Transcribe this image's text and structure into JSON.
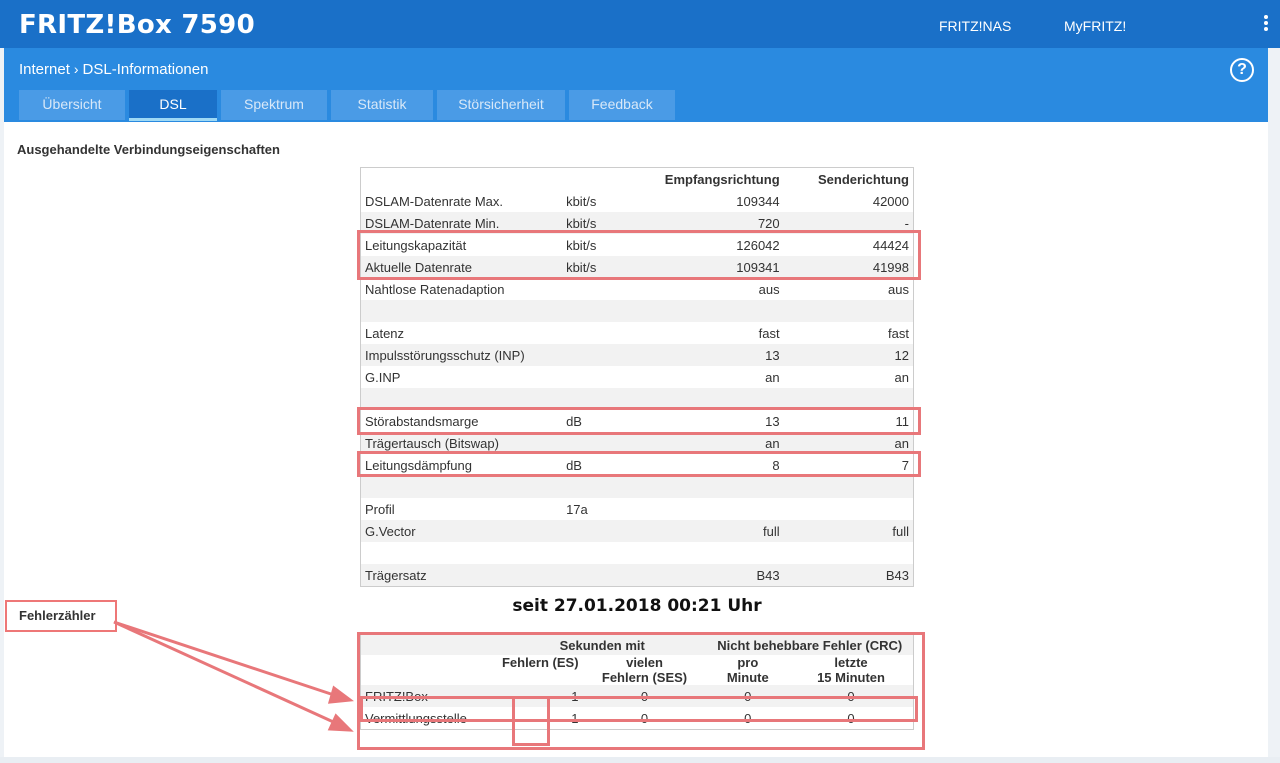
{
  "header": {
    "logo": "FRITZ!Box 7590",
    "links": [
      "FRITZ!NAS",
      "MyFRITZ!"
    ]
  },
  "breadcrumb": {
    "parent": "Internet",
    "current": "DSL-Informationen"
  },
  "tabs": [
    {
      "label": "Übersicht",
      "active": false
    },
    {
      "label": "DSL",
      "active": true
    },
    {
      "label": "Spektrum",
      "active": false
    },
    {
      "label": "Statistik",
      "active": false
    },
    {
      "label": "Störsicherheit",
      "active": false
    },
    {
      "label": "Feedback",
      "active": false
    }
  ],
  "section_title": "Ausgehandelte Verbindungseigenschaften",
  "dsl_table": {
    "headers": [
      "",
      "",
      "Empfangsrichtung",
      "Senderichtung"
    ],
    "rows": [
      [
        "DSLAM-Datenrate Max.",
        "kbit/s",
        "109344",
        "42000"
      ],
      [
        "DSLAM-Datenrate Min.",
        "kbit/s",
        "720",
        "-"
      ],
      [
        "Leitungskapazität",
        "kbit/s",
        "126042",
        "44424"
      ],
      [
        "Aktuelle Datenrate",
        "kbit/s",
        "109341",
        "41998"
      ],
      [
        "Nahtlose Ratenadaption",
        "",
        "aus",
        "aus"
      ],
      [
        "",
        "",
        "",
        ""
      ],
      [
        "Latenz",
        "",
        "fast",
        "fast"
      ],
      [
        "Impulsstörungsschutz (INP)",
        "",
        "13",
        "12"
      ],
      [
        "G.INP",
        "",
        "an",
        "an"
      ],
      [
        "",
        "",
        "",
        ""
      ],
      [
        "Störabstandsmarge",
        "dB",
        "13",
        "11"
      ],
      [
        "Trägertausch (Bitswap)",
        "",
        "an",
        "an"
      ],
      [
        "Leitungsdämpfung",
        "dB",
        "8",
        "7"
      ],
      [
        "",
        "",
        "",
        ""
      ],
      [
        "Profil",
        "17a",
        "",
        ""
      ],
      [
        "G.Vector",
        "",
        "full",
        "full"
      ],
      [
        "",
        "",
        "",
        ""
      ],
      [
        "Trägersatz",
        "",
        "B43",
        "B43"
      ]
    ]
  },
  "since_text": "seit 27.01.2018 00:21 Uhr",
  "error_section": {
    "label": "Fehlerzähler",
    "group_headers": [
      "Sekunden mit",
      "Nicht behebbare Fehler (CRC)"
    ],
    "sub_headers": [
      "Fehlern (ES)",
      "vielen Fehlern (SES)",
      "pro Minute",
      "letzte 15 Minuten"
    ],
    "rows": [
      [
        "FRITZ!Box",
        "1",
        "0",
        "0",
        "0"
      ],
      [
        "Vermittlungsstelle",
        "1",
        "0",
        "0",
        "0"
      ]
    ]
  }
}
